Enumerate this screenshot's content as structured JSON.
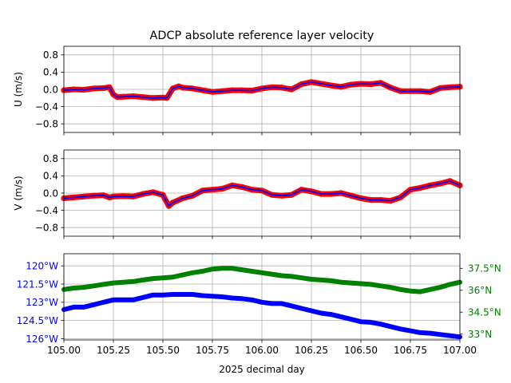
{
  "chart_data": {
    "type": "line",
    "title": "ADCP absolute reference layer velocity",
    "xlabel": "2025 decimal day",
    "x_range": [
      105.0,
      107.0
    ],
    "x_ticks": [
      105.0,
      105.25,
      105.5,
      105.75,
      106.0,
      106.25,
      106.5,
      106.75,
      107.0
    ],
    "x_tick_labels": [
      "105.00",
      "105.25",
      "105.50",
      "105.75",
      "106.00",
      "106.25",
      "106.50",
      "106.75",
      "107.00"
    ],
    "grid": true,
    "panels": [
      {
        "ylabel": "U (m/s)",
        "ylim": [
          -1.0,
          1.0
        ],
        "y_ticks": [
          0.8,
          0.4,
          0.0,
          -0.4,
          -0.8
        ],
        "y_tick_labels": [
          "0.8",
          "0.4",
          "0.0",
          "−0.4",
          "−0.8"
        ],
        "series": [
          {
            "style": "points",
            "color": "#ff0000",
            "x": [
              105.0,
              105.05,
              105.1,
              105.15,
              105.2,
              105.23,
              105.25,
              105.27,
              105.3,
              105.35,
              105.4,
              105.45,
              105.5,
              105.52,
              105.55,
              105.58,
              105.6,
              105.65,
              105.7,
              105.75,
              105.8,
              105.85,
              105.9,
              105.95,
              106.0,
              106.05,
              106.1,
              106.15,
              106.2,
              106.25,
              106.3,
              106.35,
              106.4,
              106.45,
              106.5,
              106.55,
              106.6,
              106.65,
              106.7,
              106.75,
              106.8,
              106.85,
              106.9,
              106.95,
              107.0
            ],
            "y": [
              -0.02,
              0.0,
              -0.01,
              0.02,
              0.03,
              0.05,
              -0.12,
              -0.18,
              -0.17,
              -0.16,
              -0.18,
              -0.2,
              -0.19,
              -0.2,
              0.02,
              0.07,
              0.04,
              0.02,
              -0.02,
              -0.06,
              -0.04,
              -0.02,
              -0.02,
              -0.03,
              0.02,
              0.05,
              0.04,
              0.0,
              0.12,
              0.17,
              0.13,
              0.09,
              0.06,
              0.11,
              0.13,
              0.12,
              0.15,
              0.04,
              -0.04,
              -0.04,
              -0.04,
              -0.06,
              0.03,
              0.05,
              0.06
            ]
          },
          {
            "style": "line",
            "color": "#0000ff",
            "x": [
              105.0,
              105.05,
              105.1,
              105.15,
              105.2,
              105.23,
              105.25,
              105.27,
              105.3,
              105.35,
              105.4,
              105.45,
              105.5,
              105.52,
              105.55,
              105.58,
              105.6,
              105.65,
              105.7,
              105.75,
              105.8,
              105.85,
              105.9,
              105.95,
              106.0,
              106.05,
              106.1,
              106.15,
              106.2,
              106.25,
              106.3,
              106.35,
              106.4,
              106.45,
              106.5,
              106.55,
              106.6,
              106.65,
              106.7,
              106.75,
              106.8,
              106.85,
              106.9,
              106.95,
              107.0
            ],
            "y": [
              -0.02,
              0.0,
              -0.01,
              0.02,
              0.03,
              0.05,
              -0.12,
              -0.18,
              -0.17,
              -0.16,
              -0.18,
              -0.2,
              -0.19,
              -0.2,
              0.02,
              0.07,
              0.04,
              0.02,
              -0.02,
              -0.06,
              -0.04,
              -0.02,
              -0.02,
              -0.03,
              0.02,
              0.05,
              0.04,
              0.0,
              0.12,
              0.17,
              0.13,
              0.09,
              0.06,
              0.11,
              0.13,
              0.12,
              0.15,
              0.04,
              -0.04,
              -0.04,
              -0.04,
              -0.06,
              0.03,
              0.05,
              0.06
            ]
          }
        ]
      },
      {
        "ylabel": "V (m/s)",
        "ylim": [
          -1.0,
          1.0
        ],
        "y_ticks": [
          0.8,
          0.4,
          0.0,
          -0.4,
          -0.8
        ],
        "y_tick_labels": [
          "0.8",
          "0.4",
          "0.0",
          "−0.4",
          "−0.8"
        ],
        "series": [
          {
            "style": "points",
            "color": "#ff0000",
            "x": [
              105.0,
              105.05,
              105.1,
              105.15,
              105.2,
              105.23,
              105.25,
              105.3,
              105.35,
              105.4,
              105.45,
              105.5,
              105.53,
              105.55,
              105.6,
              105.65,
              105.7,
              105.75,
              105.8,
              105.85,
              105.9,
              105.95,
              106.0,
              106.05,
              106.1,
              106.15,
              106.2,
              106.25,
              106.3,
              106.35,
              106.4,
              106.45,
              106.5,
              106.55,
              106.6,
              106.65,
              106.7,
              106.75,
              106.8,
              106.85,
              106.9,
              106.95,
              107.0
            ],
            "y": [
              -0.12,
              -0.1,
              -0.08,
              -0.06,
              -0.05,
              -0.1,
              -0.08,
              -0.07,
              -0.08,
              -0.02,
              0.02,
              -0.04,
              -0.3,
              -0.22,
              -0.12,
              -0.06,
              0.06,
              0.08,
              0.1,
              0.18,
              0.14,
              0.08,
              0.06,
              -0.04,
              -0.06,
              -0.04,
              0.08,
              0.04,
              -0.02,
              -0.02,
              0.0,
              -0.06,
              -0.12,
              -0.16,
              -0.16,
              -0.18,
              -0.1,
              0.08,
              0.12,
              0.18,
              0.22,
              0.28,
              0.18
            ]
          },
          {
            "style": "line",
            "color": "#0000ff",
            "x": [
              105.0,
              105.05,
              105.1,
              105.15,
              105.2,
              105.23,
              105.25,
              105.3,
              105.35,
              105.4,
              105.45,
              105.5,
              105.53,
              105.55,
              105.6,
              105.65,
              105.7,
              105.75,
              105.8,
              105.85,
              105.9,
              105.95,
              106.0,
              106.05,
              106.1,
              106.15,
              106.2,
              106.25,
              106.3,
              106.35,
              106.4,
              106.45,
              106.5,
              106.55,
              106.6,
              106.65,
              106.7,
              106.75,
              106.8,
              106.85,
              106.9,
              106.95,
              107.0
            ],
            "y": [
              -0.12,
              -0.1,
              -0.08,
              -0.06,
              -0.05,
              -0.1,
              -0.08,
              -0.07,
              -0.08,
              -0.02,
              0.02,
              -0.04,
              -0.3,
              -0.22,
              -0.12,
              -0.06,
              0.06,
              0.08,
              0.1,
              0.18,
              0.14,
              0.08,
              0.06,
              -0.04,
              -0.06,
              -0.04,
              0.08,
              0.04,
              -0.02,
              -0.02,
              0.0,
              -0.06,
              -0.12,
              -0.16,
              -0.16,
              -0.18,
              -0.1,
              0.08,
              0.12,
              0.18,
              0.22,
              0.28,
              0.18
            ]
          }
        ]
      },
      {
        "left_axis": {
          "color": "#0000ff",
          "ylim": [
            -126.1,
            -119.0
          ],
          "y_ticks": [
            -120.0,
            -121.5,
            -123.0,
            -124.5,
            -126.0
          ],
          "y_tick_labels": [
            "120°W",
            "121.5°W",
            "123°W",
            "124.5°W",
            "126°W"
          ]
        },
        "right_axis": {
          "color": "#008000",
          "ylim": [
            32.6,
            38.5
          ],
          "y_ticks": [
            37.5,
            36.0,
            34.5,
            33.0
          ],
          "y_tick_labels": [
            "37.5°N",
            "36°N",
            "34.5°N",
            "33°N"
          ]
        },
        "series": [
          {
            "axis": "left",
            "color": "#0000ff",
            "x": [
              105.0,
              105.05,
              105.1,
              105.15,
              105.2,
              105.25,
              105.3,
              105.35,
              105.4,
              105.45,
              105.5,
              105.55,
              105.6,
              105.65,
              105.7,
              105.75,
              105.8,
              105.85,
              105.9,
              105.95,
              106.0,
              106.05,
              106.1,
              106.15,
              106.2,
              106.25,
              106.3,
              106.35,
              106.4,
              106.45,
              106.5,
              106.55,
              106.6,
              106.65,
              106.7,
              106.75,
              106.8,
              106.85,
              106.9,
              106.95,
              107.0
            ],
            "y": [
              -123.6,
              -123.4,
              -123.4,
              -123.2,
              -123.0,
              -122.8,
              -122.8,
              -122.8,
              -122.6,
              -122.4,
              -122.4,
              -122.35,
              -122.35,
              -122.35,
              -122.45,
              -122.5,
              -122.55,
              -122.65,
              -122.7,
              -122.8,
              -123.0,
              -123.1,
              -123.1,
              -123.3,
              -123.5,
              -123.7,
              -123.9,
              -124.0,
              -124.2,
              -124.4,
              -124.6,
              -124.65,
              -124.8,
              -125.0,
              -125.2,
              -125.35,
              -125.5,
              -125.55,
              -125.65,
              -125.75,
              -125.85
            ]
          },
          {
            "axis": "right",
            "color": "#008000",
            "x": [
              105.0,
              105.05,
              105.1,
              105.15,
              105.2,
              105.25,
              105.3,
              105.35,
              105.4,
              105.45,
              105.5,
              105.55,
              105.6,
              105.65,
              105.7,
              105.75,
              105.8,
              105.85,
              105.9,
              105.95,
              106.0,
              106.05,
              106.1,
              106.15,
              106.2,
              106.25,
              106.3,
              106.35,
              106.4,
              106.45,
              106.5,
              106.55,
              106.6,
              106.65,
              106.7,
              106.75,
              106.8,
              106.85,
              106.9,
              106.95,
              107.0
            ],
            "y": [
              36.05,
              36.15,
              36.2,
              36.3,
              36.4,
              36.5,
              36.55,
              36.6,
              36.7,
              36.8,
              36.85,
              36.9,
              37.05,
              37.2,
              37.3,
              37.45,
              37.5,
              37.5,
              37.4,
              37.3,
              37.2,
              37.1,
              37.0,
              36.95,
              36.85,
              36.75,
              36.7,
              36.65,
              36.55,
              36.5,
              36.45,
              36.4,
              36.3,
              36.2,
              36.05,
              35.95,
              35.9,
              36.05,
              36.2,
              36.4,
              36.55
            ]
          }
        ]
      }
    ]
  }
}
